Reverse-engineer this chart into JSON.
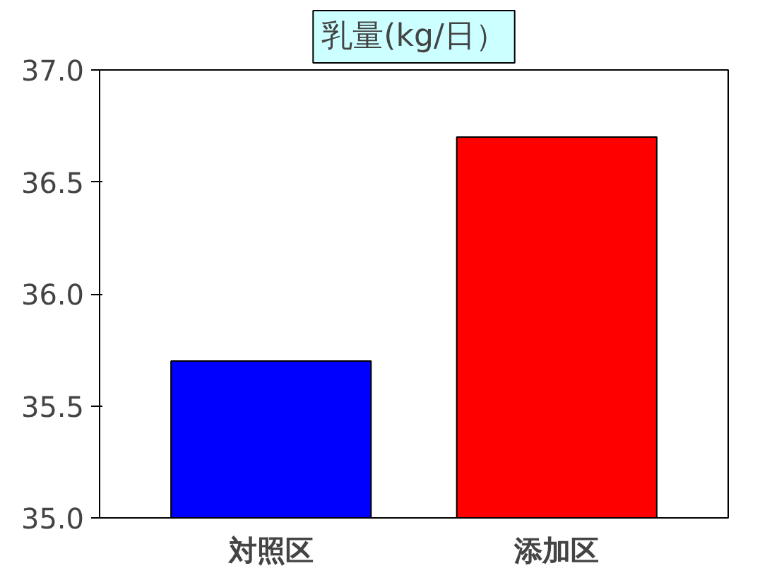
{
  "chart_data": {
    "type": "bar",
    "title": "乳量(kg/日）",
    "categories": [
      "対照区",
      "添加区"
    ],
    "series": [
      {
        "color": "#0000ff",
        "values": [
          35.7,
          null
        ]
      },
      {
        "color": "#ff0000",
        "values": [
          null,
          36.7
        ]
      }
    ],
    "ylim": [
      35.0,
      37.0
    ],
    "yticks": [
      {
        "value": 35,
        "label": "35.0"
      },
      {
        "value": 35.5,
        "label": "35.5"
      },
      {
        "value": 36,
        "label": "36.0"
      },
      {
        "value": 36.5,
        "label": "36.5"
      },
      {
        "value": 37,
        "label": "37.0"
      }
    ],
    "grid": false
  }
}
